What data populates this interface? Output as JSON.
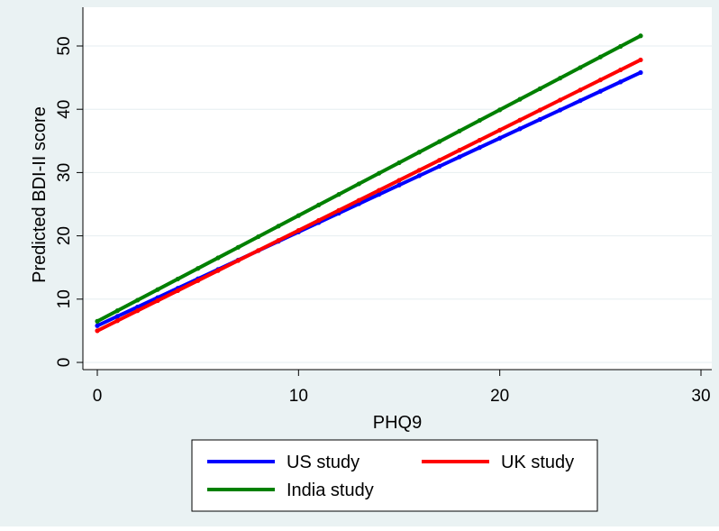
{
  "chart_data": {
    "type": "line",
    "title": "",
    "xlabel": "PHQ9",
    "ylabel": "Predicted BDI-II score",
    "xlim": [
      0,
      30
    ],
    "ylim": [
      0,
      50
    ],
    "xticks": [
      "0",
      "10",
      "20",
      "30"
    ],
    "yticks": [
      "0",
      "10",
      "20",
      "30",
      "40",
      "50"
    ],
    "grid": true,
    "legend_position": "bottom",
    "x": [
      0,
      27
    ],
    "series": [
      {
        "name": "US study",
        "color": "#0000ff",
        "values": [
          5.8,
          45.8
        ]
      },
      {
        "name": "UK study",
        "color": "#ff0000",
        "values": [
          5.0,
          47.8
        ]
      },
      {
        "name": "India study",
        "color": "#008000",
        "values": [
          6.5,
          51.6
        ]
      }
    ]
  },
  "colors": {
    "background": "#eaf2f3",
    "plot_area": "#ffffff",
    "grid": "#e6eef0"
  }
}
